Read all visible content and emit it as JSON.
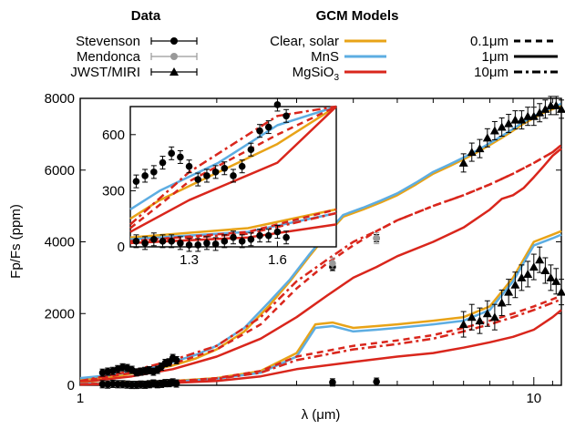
{
  "chart_data": {
    "type": "line",
    "xlabel": "λ (μm)",
    "ylabel": "Fp/Fs (ppm)",
    "xscale": "log",
    "xlim": [
      1.0,
      11.5
    ],
    "ylim": [
      0,
      8000
    ],
    "xticks": [
      1,
      10
    ],
    "xtick_labels": [
      "1",
      "10"
    ],
    "yticks": [
      0,
      2000,
      4000,
      6000,
      8000
    ],
    "ytick_labels": [
      "0",
      "2000",
      "4000",
      "6000",
      "8000"
    ],
    "legend": {
      "data_title": "Data",
      "models_title": "GCM Models",
      "data_entries": [
        "Stevenson",
        "Mendonca",
        "JWST/MIRI"
      ],
      "model_entries": [
        {
          "label": "Clear, solar",
          "color": "#E8A317"
        },
        {
          "label": "MnS",
          "color": "#5DADE2"
        },
        {
          "label": "MgSiO",
          "subscript": "3",
          "color": "#D9261C"
        }
      ],
      "linestyle_entries": [
        {
          "label": "0.1μm",
          "style": "dashed"
        },
        {
          "label": "1μm",
          "style": "solid"
        },
        {
          "label": "10μm",
          "style": "dashdot"
        }
      ]
    },
    "series": [
      {
        "name": "Clear, solar",
        "group": "day",
        "color": "#E8A317",
        "x": [
          1.0,
          1.2,
          1.4,
          1.6,
          1.8,
          2.0,
          2.3,
          2.6,
          2.9,
          3.2,
          3.5,
          3.8,
          4.2,
          4.6,
          5.0,
          5.5,
          6.0,
          6.5,
          7.0,
          7.5,
          8.0,
          8.5,
          9.0,
          9.5,
          10.0,
          10.5,
          11.0,
          11.5
        ],
        "y": [
          150,
          250,
          400,
          550,
          750,
          1000,
          1500,
          2200,
          2900,
          3600,
          4200,
          4700,
          4900,
          5100,
          5300,
          5600,
          5900,
          6100,
          6300,
          6500,
          6700,
          6900,
          7100,
          7300,
          7450,
          7600,
          7700,
          7800
        ]
      },
      {
        "name": "MnS",
        "group": "day",
        "color": "#5DADE2",
        "x": [
          1.0,
          1.2,
          1.4,
          1.6,
          1.8,
          2.0,
          2.3,
          2.6,
          2.9,
          3.2,
          3.5,
          3.8,
          4.2,
          4.6,
          5.0,
          5.5,
          6.0,
          6.5,
          7.0,
          7.5,
          8.0,
          8.5,
          9.0,
          9.5,
          10.0,
          10.5,
          11.0,
          11.5
        ],
        "y": [
          200,
          300,
          450,
          650,
          850,
          1100,
          1600,
          2300,
          2950,
          3650,
          4250,
          4750,
          4950,
          5150,
          5350,
          5650,
          5950,
          6150,
          6350,
          6550,
          6750,
          6950,
          7150,
          7350,
          7500,
          7650,
          7750,
          7850
        ]
      },
      {
        "name": "MgSiO3 0.1μm",
        "group": "day",
        "color": "#D9261C",
        "style": "dashed",
        "x": [
          1.0,
          1.3,
          1.6,
          2.0,
          2.5,
          3.0,
          3.5,
          4.0,
          4.5,
          5.0,
          6.0,
          7.0,
          8.0,
          9.0,
          10.0,
          11.0,
          11.5
        ],
        "y": [
          100,
          350,
          600,
          1000,
          1700,
          2700,
          3400,
          3900,
          4300,
          4600,
          5000,
          5300,
          5600,
          5900,
          6200,
          6500,
          6700
        ]
      },
      {
        "name": "MgSiO3 1μm",
        "group": "day",
        "color": "#D9261C",
        "style": "solid",
        "x": [
          1.0,
          1.3,
          1.6,
          2.0,
          2.5,
          3.0,
          3.5,
          4.0,
          4.5,
          5.0,
          6.0,
          7.0,
          8.0,
          8.5,
          9.0,
          9.5,
          10.0,
          10.5,
          11.0,
          11.5
        ],
        "y": [
          80,
          250,
          450,
          800,
          1300,
          1900,
          2500,
          3000,
          3300,
          3600,
          4000,
          4400,
          4900,
          5200,
          5300,
          5500,
          5800,
          6100,
          6400,
          6600
        ]
      },
      {
        "name": "MgSiO3 10μm",
        "group": "day",
        "color": "#D9261C",
        "style": "dashdot",
        "x": [
          1.0,
          1.3,
          1.6,
          2.0,
          2.5,
          3.0,
          3.5,
          4.0,
          4.5,
          5.0,
          6.0,
          7.0,
          8.0,
          9.0,
          10.0,
          11.0,
          11.5
        ],
        "y": [
          120,
          400,
          700,
          1100,
          1900,
          2900,
          3500,
          4000,
          4300,
          4600,
          5000,
          5300,
          5600,
          5900,
          6200,
          6500,
          6700
        ]
      },
      {
        "name": "Clear, solar",
        "group": "night",
        "color": "#E8A317",
        "x": [
          1.0,
          1.5,
          2.0,
          2.5,
          3.0,
          3.3,
          3.6,
          4.0,
          4.5,
          5.0,
          6.0,
          7.0,
          8.0,
          9.0,
          10.0,
          11.0,
          11.5
        ],
        "y": [
          50,
          100,
          200,
          400,
          900,
          1700,
          1750,
          1600,
          1650,
          1700,
          1800,
          1900,
          2200,
          3000,
          4000,
          4200,
          4300
        ]
      },
      {
        "name": "MnS",
        "group": "night",
        "color": "#5DADE2",
        "x": [
          1.0,
          1.5,
          2.0,
          2.5,
          3.0,
          3.3,
          3.6,
          4.0,
          4.5,
          5.0,
          6.0,
          7.0,
          8.0,
          9.0,
          10.0,
          11.0,
          11.5
        ],
        "y": [
          40,
          80,
          180,
          350,
          800,
          1600,
          1650,
          1500,
          1550,
          1600,
          1700,
          1800,
          2100,
          2900,
          3900,
          4100,
          4200
        ]
      },
      {
        "name": "MgSiO3 0.1μm",
        "group": "night",
        "color": "#D9261C",
        "style": "dashed",
        "x": [
          1.0,
          1.5,
          2.0,
          2.5,
          3.0,
          4.0,
          5.0,
          6.0,
          7.0,
          8.0,
          9.0,
          10.0,
          11.0,
          11.5
        ],
        "y": [
          30,
          80,
          200,
          400,
          800,
          1100,
          1250,
          1400,
          1600,
          1800,
          2000,
          2200,
          2400,
          2500
        ]
      },
      {
        "name": "MgSiO3 1μm",
        "group": "night",
        "color": "#D9261C",
        "style": "solid",
        "x": [
          1.0,
          1.5,
          2.0,
          2.5,
          3.0,
          4.0,
          5.0,
          6.0,
          7.0,
          8.0,
          9.0,
          10.0,
          11.0,
          11.5
        ],
        "y": [
          20,
          50,
          120,
          250,
          450,
          650,
          800,
          900,
          1050,
          1200,
          1350,
          1550,
          1900,
          2100
        ]
      },
      {
        "name": "MgSiO3 10μm",
        "group": "night",
        "color": "#D9261C",
        "style": "dashdot",
        "x": [
          1.0,
          1.5,
          2.0,
          2.5,
          3.0,
          4.0,
          5.0,
          6.0,
          7.0,
          8.0,
          9.0,
          10.0,
          11.0,
          11.5
        ],
        "y": [
          30,
          70,
          180,
          350,
          700,
          1000,
          1150,
          1300,
          1500,
          1700,
          1900,
          2100,
          2300,
          2400
        ]
      }
    ],
    "data_points": {
      "stevenson_day": {
        "x": [
          1.12,
          1.15,
          1.18,
          1.21,
          1.24,
          1.27,
          1.3,
          1.33,
          1.36,
          1.39,
          1.42,
          1.45,
          1.48,
          1.51,
          1.54,
          1.57,
          1.6,
          1.63,
          3.6,
          4.5
        ],
        "y": [
          350,
          380,
          400,
          450,
          500,
          480,
          430,
          360,
          380,
          400,
          420,
          380,
          430,
          520,
          620,
          640,
          760,
          700,
          3300,
          4100
        ]
      },
      "stevenson_night": {
        "x": [
          1.12,
          1.15,
          1.18,
          1.21,
          1.24,
          1.27,
          1.3,
          1.33,
          1.36,
          1.39,
          1.42,
          1.45,
          1.48,
          1.51,
          1.54,
          1.57,
          1.6,
          1.63,
          3.6,
          4.5
        ],
        "y": [
          30,
          20,
          40,
          30,
          30,
          20,
          10,
          10,
          20,
          15,
          30,
          50,
          30,
          40,
          60,
          60,
          80,
          50,
          80,
          100
        ]
      },
      "mendonca": {
        "x": [
          3.6,
          4.5
        ],
        "y": [
          3400,
          4100
        ]
      },
      "jwst_miri": {
        "x": [
          7.0,
          7.3,
          7.6,
          7.9,
          8.2,
          8.5,
          8.8,
          9.1,
          9.4,
          9.7,
          10.0,
          10.3,
          10.6,
          10.9,
          11.2,
          11.5
        ],
        "y": [
          6200,
          6500,
          6600,
          6900,
          7100,
          7200,
          7300,
          7400,
          7400,
          7500,
          7500,
          7600,
          7700,
          7800,
          7800,
          7700
        ]
      },
      "jwst_miri_night": {
        "x": [
          7.0,
          7.3,
          7.6,
          7.9,
          8.2,
          8.5,
          8.8,
          9.1,
          9.4,
          9.7,
          10.0,
          10.3,
          10.6,
          10.9,
          11.2,
          11.5
        ],
        "y": [
          1700,
          1900,
          1800,
          2000,
          1900,
          2300,
          2600,
          2800,
          3000,
          3100,
          3300,
          3500,
          3200,
          3000,
          2900,
          2600
        ]
      }
    },
    "inset": {
      "xlim": [
        1.1,
        1.8
      ],
      "ylim": [
        0,
        750
      ],
      "xticks": [
        1.3,
        1.6
      ],
      "xtick_labels": [
        "1.3",
        "1.6"
      ],
      "yticks": [
        0,
        300,
        600
      ],
      "ytick_labels": [
        "0",
        "300",
        "600"
      ]
    }
  }
}
